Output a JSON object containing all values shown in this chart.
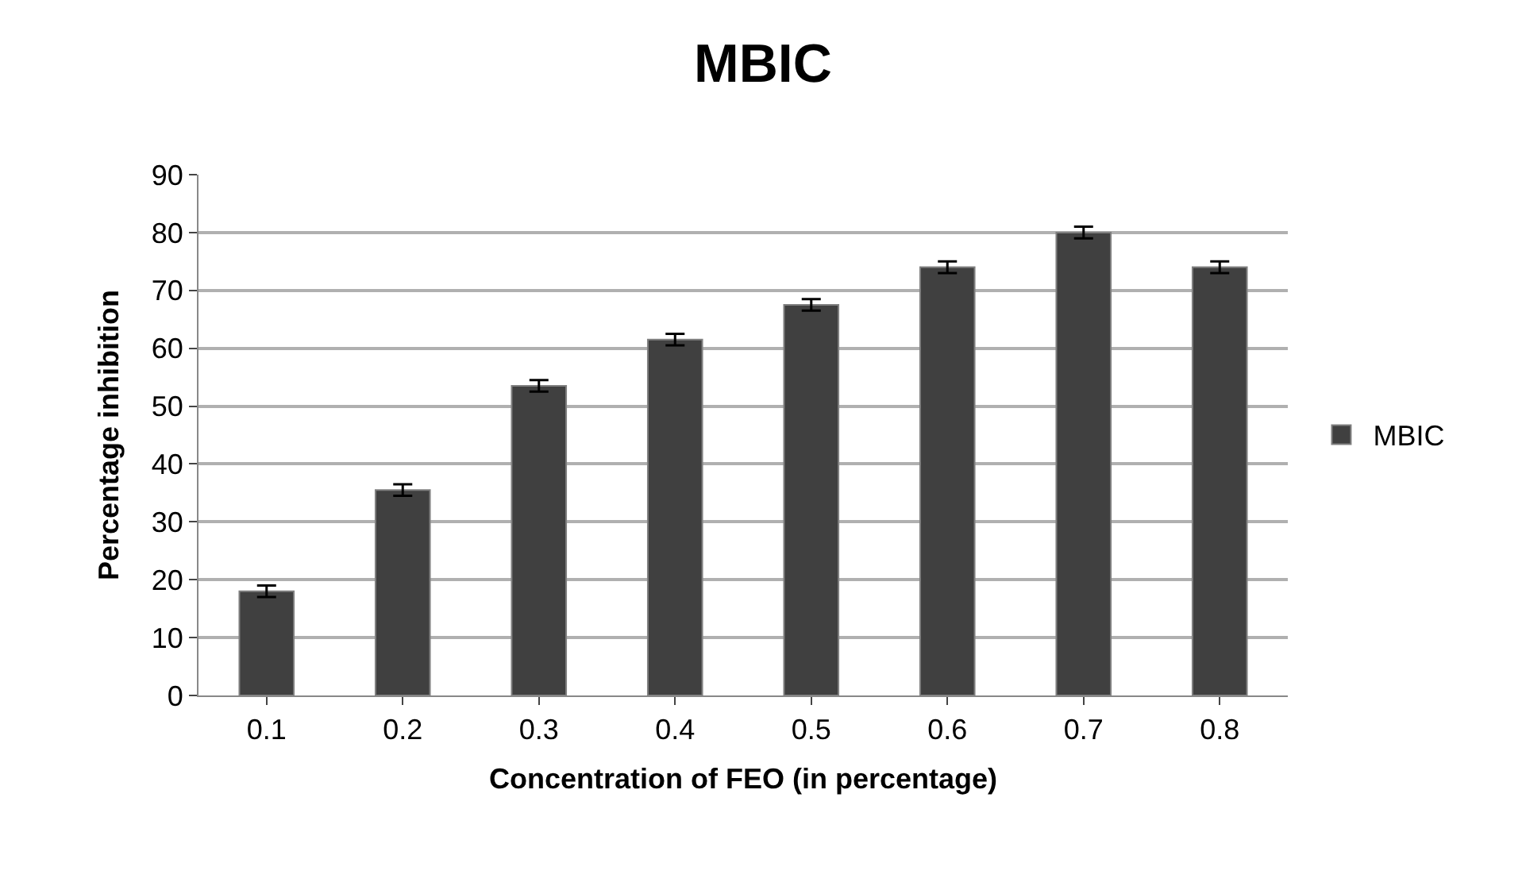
{
  "chart_data": {
    "type": "bar",
    "title": "MBIC",
    "xlabel": "Concentration of FEO (in percentage)",
    "ylabel": "Percentage inhibition",
    "categories": [
      "0.1",
      "0.2",
      "0.3",
      "0.4",
      "0.5",
      "0.6",
      "0.7",
      "0.8"
    ],
    "series": [
      {
        "name": "MBIC",
        "color": "#404040",
        "values": [
          18,
          35.5,
          53.5,
          61.5,
          67.5,
          74,
          80,
          74
        ],
        "errors": [
          1,
          1,
          1,
          1,
          1,
          1,
          1,
          1
        ]
      }
    ],
    "ylim": [
      0,
      90
    ],
    "yticks": [
      0,
      10,
      20,
      30,
      40,
      50,
      60,
      70,
      80,
      90
    ],
    "grid": "y",
    "legend": "right"
  }
}
